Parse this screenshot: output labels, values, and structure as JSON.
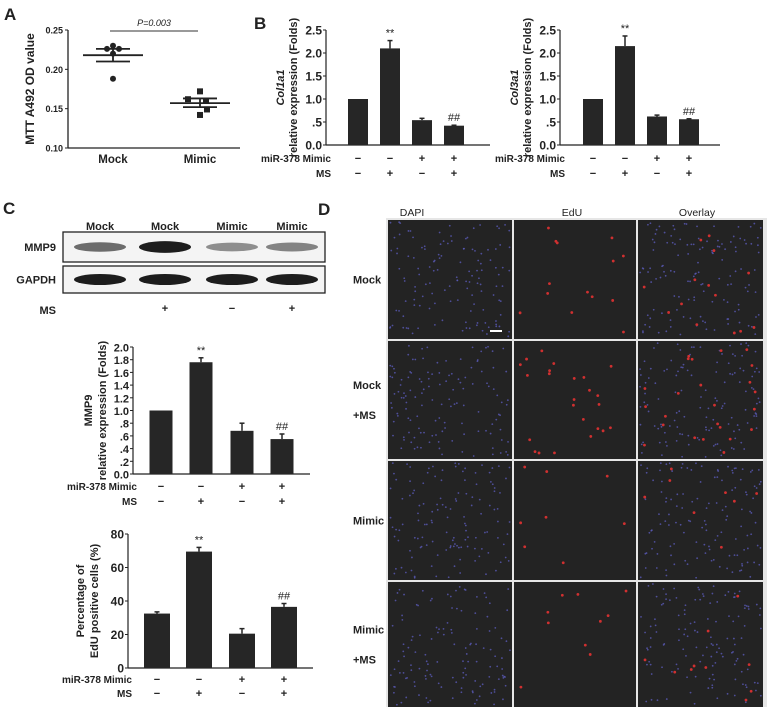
{
  "panels": {
    "a": "A",
    "b": "B",
    "c": "C",
    "d": "D"
  },
  "chart_data": [
    {
      "id": "A",
      "type": "scatter",
      "ylabel": "MTT A492 OD value",
      "categories": [
        "Mock",
        "Mimic"
      ],
      "ylim": [
        0.1,
        0.25
      ],
      "yticks": [
        "0.10",
        "0.15",
        "0.20",
        "0.25"
      ],
      "annotation": "P=0.003",
      "series": [
        {
          "category": "Mock",
          "points": [
            0.23,
            0.226,
            0.226,
            0.22,
            0.188
          ],
          "mean": 0.218,
          "sem_low": 0.21,
          "sem_high": 0.226,
          "marker": "circle"
        },
        {
          "category": "Mimic",
          "points": [
            0.172,
            0.162,
            0.16,
            0.149,
            0.142
          ],
          "mean": 0.157,
          "sem_low": 0.152,
          "sem_high": 0.163,
          "marker": "square"
        }
      ]
    },
    {
      "id": "B1",
      "type": "bar",
      "ylabel_gene": "Col1a1",
      "ylabel": "relative expression (Folds)",
      "ylim": [
        0,
        2.5
      ],
      "yticks": [
        "0.0",
        ".5",
        "1.0",
        "1.5",
        "2.0",
        "2.5"
      ],
      "values": [
        1.0,
        2.1,
        0.54,
        0.42
      ],
      "errors": [
        0,
        0.17,
        0.04,
        0.01
      ],
      "marks": [
        "",
        "**",
        "",
        "##"
      ],
      "rows": [
        {
          "label": "miR-378 Mimic",
          "values": [
            "−",
            "−",
            "+",
            "+"
          ]
        },
        {
          "label": "MS",
          "values": [
            "−",
            "+",
            "−",
            "+"
          ]
        }
      ]
    },
    {
      "id": "B2",
      "type": "bar",
      "ylabel_gene": "Col3a1",
      "ylabel": "relative expression (Folds)",
      "ylim": [
        0,
        2.5
      ],
      "yticks": [
        "0.0",
        ".5",
        "1.0",
        "1.5",
        "2.0",
        "2.5"
      ],
      "values": [
        1.0,
        2.15,
        0.62,
        0.56
      ],
      "errors": [
        0,
        0.22,
        0.03,
        0.01
      ],
      "marks": [
        "",
        "**",
        "",
        "##"
      ],
      "rows": [
        {
          "label": "miR-378 Mimic",
          "values": [
            "−",
            "−",
            "+",
            "+"
          ]
        },
        {
          "label": "MS",
          "values": [
            "−",
            "+",
            "−",
            "+"
          ]
        }
      ]
    },
    {
      "id": "C",
      "type": "bar",
      "ylabel_gene": "MMP9",
      "ylabel": "relative expression (Folds)",
      "ylim": [
        0,
        2.0
      ],
      "yticks": [
        "0.0",
        ".2",
        ".4",
        ".6",
        ".8",
        "1.0",
        "1.2",
        "1.4",
        "1.6",
        "1.8",
        "2.0"
      ],
      "values": [
        1.0,
        1.76,
        0.68,
        0.55
      ],
      "errors": [
        0,
        0.07,
        0.12,
        0.08
      ],
      "marks": [
        "",
        "**",
        "",
        "##"
      ],
      "rows": [
        {
          "label": "miR-378 Mimic",
          "values": [
            "−",
            "−",
            "+",
            "+"
          ]
        },
        {
          "label": "MS",
          "values": [
            "−",
            "+",
            "−",
            "+"
          ]
        }
      ]
    },
    {
      "id": "EdU",
      "type": "bar",
      "ylabel_gene": "Percentage of",
      "ylabel": "EdU positive cells (%)",
      "ylim": [
        0,
        80
      ],
      "yticks": [
        "0",
        "20",
        "40",
        "60",
        "80"
      ],
      "values": [
        32.5,
        69.5,
        20.5,
        36.5
      ],
      "errors": [
        1,
        2.5,
        3,
        2
      ],
      "marks": [
        "",
        "**",
        "",
        "##"
      ],
      "rows": [
        {
          "label": "miR-378 Mimic",
          "values": [
            "−",
            "−",
            "+",
            "+"
          ]
        },
        {
          "label": "MS",
          "values": [
            "−",
            "+",
            "−",
            "+"
          ]
        }
      ]
    }
  ],
  "blot": {
    "lanes": [
      "Mock",
      "Mock",
      "Mimic",
      "Mimic"
    ],
    "proteins": [
      "MMP9",
      "GAPDH"
    ],
    "ms_label": "MS",
    "ms_values": [
      "",
      "+",
      "−",
      "+"
    ],
    "mmp9_intensity": [
      0.6,
      0.95,
      0.45,
      0.5
    ]
  },
  "micrographs": {
    "columns": [
      "DAPI",
      "EdU",
      "Overlay"
    ],
    "rows": [
      [
        "Mock"
      ],
      [
        "Mock",
        "+MS"
      ],
      [
        "Mimic"
      ],
      [
        "Mimic",
        "+MS"
      ]
    ],
    "colors": {
      "background": "#232323",
      "dapi": "#5a5ab8",
      "edu": "#d03030",
      "divider": "#e6e6e6"
    }
  }
}
